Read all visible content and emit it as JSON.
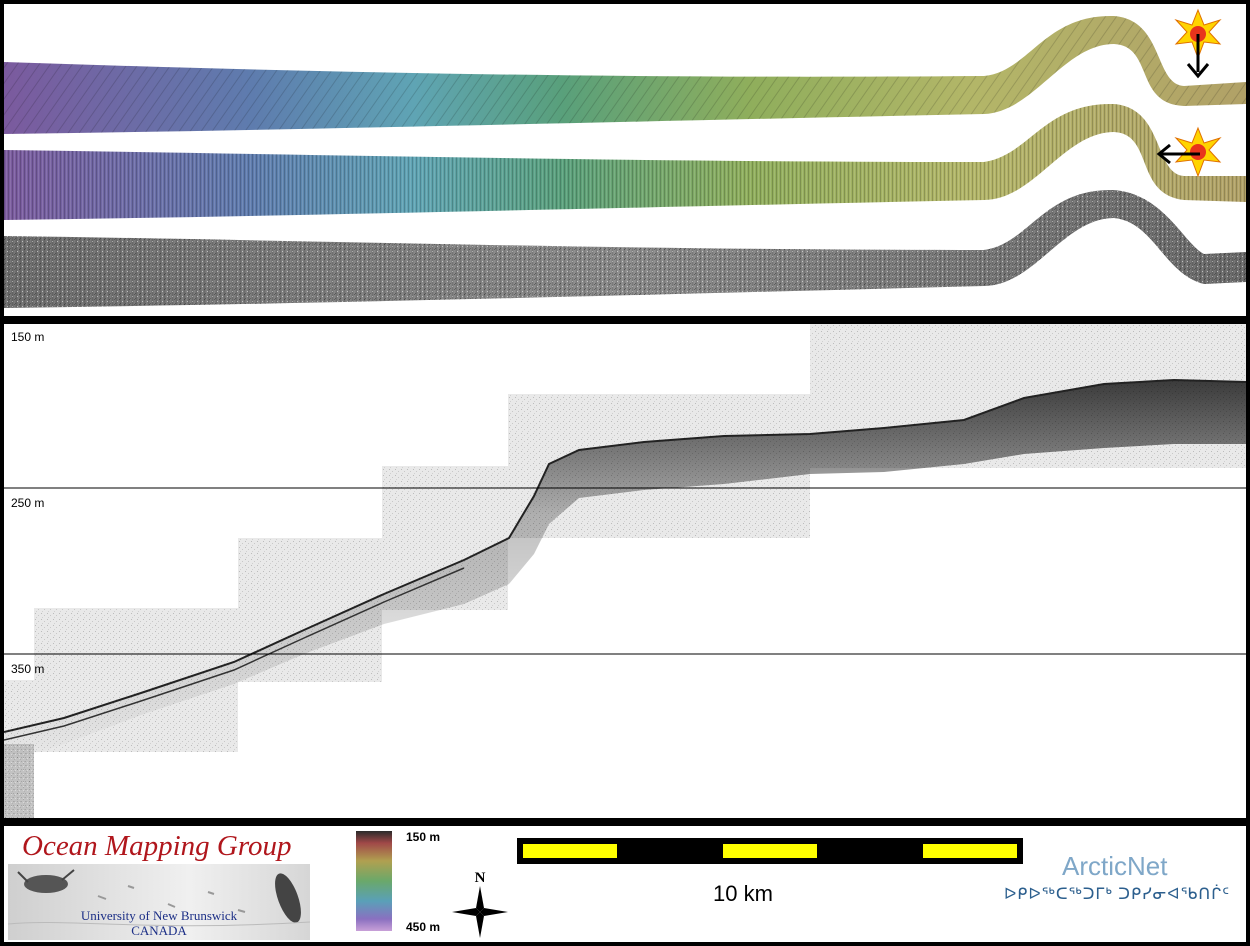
{
  "profile": {
    "depth_labels": [
      "150 m",
      "250 m",
      "350 m"
    ]
  },
  "legend": {
    "logo": {
      "title": "Ocean Mapping Group",
      "university": "University of New Brunswick",
      "country": "CANADA"
    },
    "colorbar": {
      "top_label": "150 m",
      "bottom_label": "450 m"
    },
    "north_arrow": {
      "label": "N"
    },
    "scale_bar": {
      "label": "10 km",
      "colors": {
        "fill": "#ffff00",
        "frame": "#000000"
      }
    },
    "partner_logo": {
      "title": "ArcticNet",
      "subtitle": "ᐅᑭᐅᖅᑕᖅᑐᒥᒃ ᑐᑭᓯᓂᐊᖃᑎᒌᑦ"
    }
  }
}
